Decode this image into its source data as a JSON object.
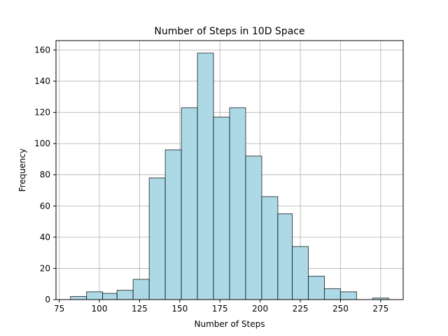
{
  "chart_data": {
    "type": "bar",
    "title": "Number of Steps in 10D Space",
    "xlabel": "Number of Steps",
    "ylabel": "Frequency",
    "bin_edges": [
      82,
      92,
      102,
      111,
      121,
      131,
      141,
      151,
      161,
      171,
      181,
      191,
      201,
      211,
      220,
      230,
      240,
      250,
      260,
      270,
      280
    ],
    "values": [
      2,
      5,
      4,
      6,
      13,
      78,
      96,
      123,
      158,
      117,
      123,
      92,
      66,
      55,
      34,
      15,
      7,
      5,
      0,
      1
    ],
    "xlim": [
      73,
      289
    ],
    "ylim": [
      0,
      166
    ],
    "xticks": [
      75,
      100,
      125,
      150,
      175,
      200,
      225,
      250,
      275
    ],
    "yticks": [
      0,
      20,
      40,
      60,
      80,
      100,
      120,
      140,
      160
    ],
    "grid": true,
    "bar_color": "#add8e6",
    "edge_color": "#000000"
  }
}
